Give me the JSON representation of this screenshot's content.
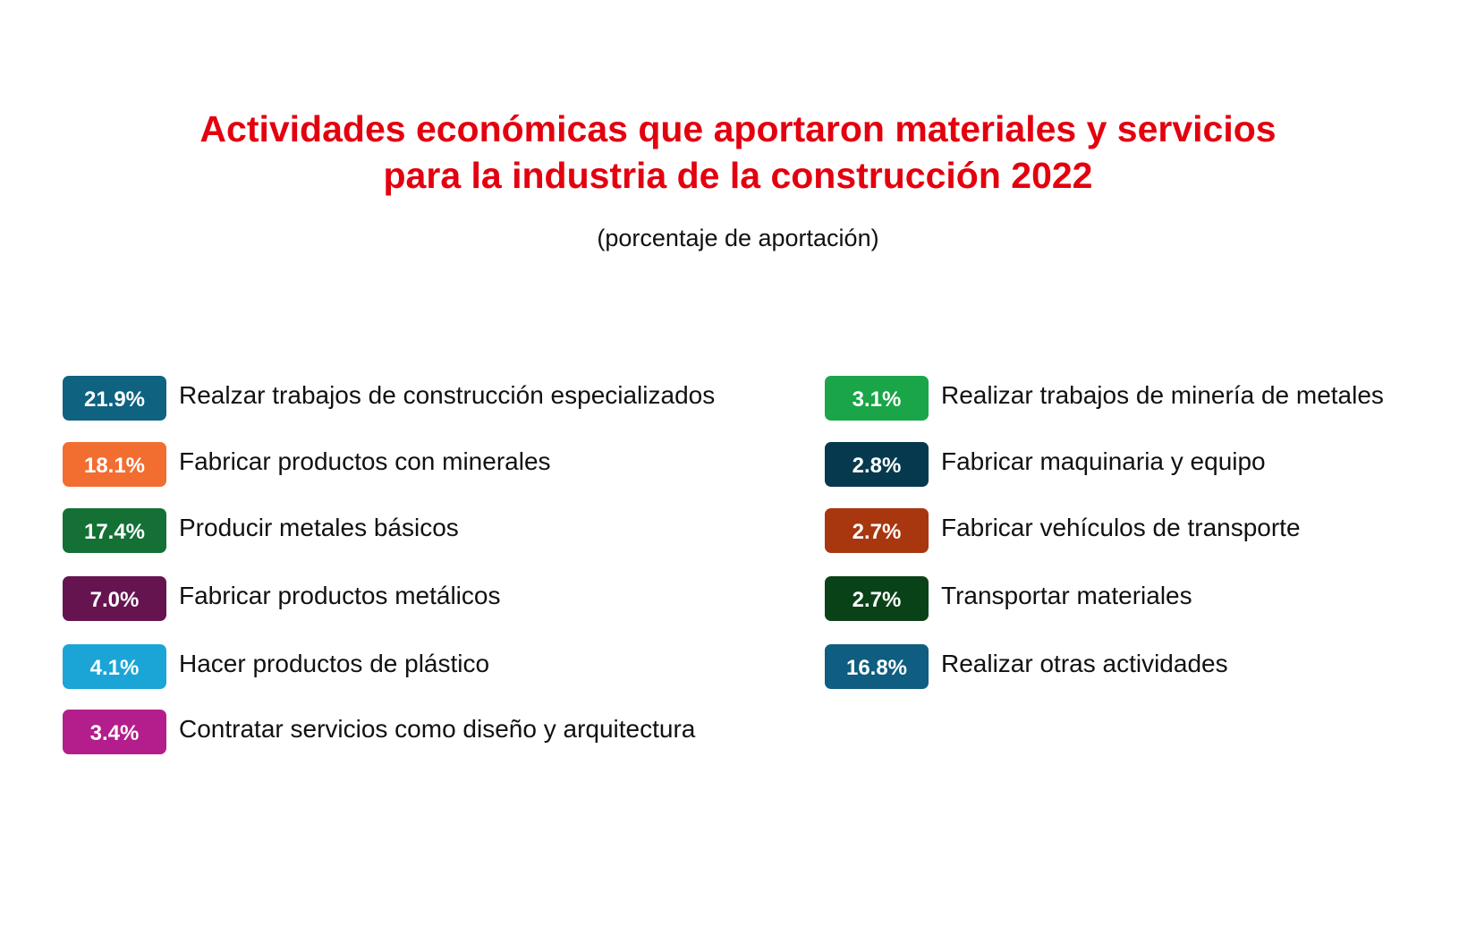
{
  "chart_data": {
    "type": "table",
    "title_lines": [
      "Actividades económicas que aportaron materiales y servicios",
      "para la industria de la construcción 2022"
    ],
    "subtitle": "(porcentaje de aportación)",
    "unit": "%",
    "items": [
      {
        "label": "Realzar trabajos de construcción especializados",
        "value": 21.9,
        "display": "21.9%",
        "color": "#0f6280"
      },
      {
        "label": "Fabricar productos con minerales",
        "value": 18.1,
        "display": "18.1%",
        "color": "#f26d30"
      },
      {
        "label": "Producir metales básicos",
        "value": 17.4,
        "display": "17.4%",
        "color": "#147035"
      },
      {
        "label": "Fabricar productos metálicos",
        "value": 7.0,
        "display": "7.0%",
        "color": "#661450"
      },
      {
        "label": "Hacer productos de plástico",
        "value": 4.1,
        "display": "4.1%",
        "color": "#1ba5d6"
      },
      {
        "label": "Contratar servicios como diseño y arquitectura",
        "value": 3.4,
        "display": "3.4%",
        "color": "#b31e8c"
      },
      {
        "label": "Realizar trabajos de minería de metales",
        "value": 3.1,
        "display": "3.1%",
        "color": "#1aa548"
      },
      {
        "label": "Fabricar maquinaria y equipo",
        "value": 2.8,
        "display": "2.8%",
        "color": "#06394d"
      },
      {
        "label": "Fabricar vehículos de transporte",
        "value": 2.7,
        "display": "2.7%",
        "color": "#a8360f"
      },
      {
        "label": "Transportar materiales",
        "value": 2.7,
        "display": "2.7%",
        "color": "#0a4217"
      },
      {
        "label": "Realizar otras actividades",
        "value": 16.8,
        "display": "16.8%",
        "color": "#0f5d80"
      }
    ]
  }
}
